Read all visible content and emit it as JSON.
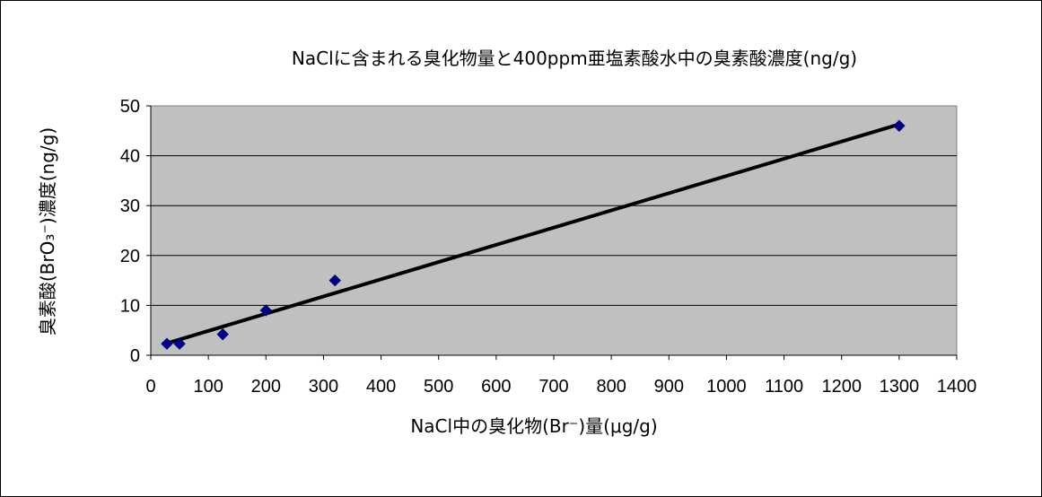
{
  "chart_data": {
    "type": "scatter",
    "title": "NaClに含まれる臭化物量と400ppm亜塩素酸水中の臭素酸濃度(ng/g)",
    "xlabel": "NaCl中の臭化物(Br⁻)量(μg/g)",
    "ylabel": "臭素酸(BrO₃⁻)濃度(ng/g)",
    "xlim": [
      0,
      1400
    ],
    "ylim": [
      0,
      50
    ],
    "x_ticks": [
      0,
      100,
      200,
      300,
      400,
      500,
      600,
      700,
      800,
      900,
      1000,
      1100,
      1200,
      1300,
      1400
    ],
    "y_ticks": [
      0,
      10,
      20,
      30,
      40,
      50
    ],
    "grid": "horizontal",
    "plot_background": "#c0c0c0",
    "series": [
      {
        "marker": "diamond",
        "color": "#000080",
        "points": [
          {
            "x": 28,
            "y": 2.3
          },
          {
            "x": 50,
            "y": 2.3
          },
          {
            "x": 125,
            "y": 4.2
          },
          {
            "x": 200,
            "y": 9.0
          },
          {
            "x": 320,
            "y": 15.0
          },
          {
            "x": 1300,
            "y": 46.0
          }
        ]
      }
    ],
    "trendline": {
      "type": "linear",
      "color": "#000000",
      "from": {
        "x": 28,
        "y": 2.4
      },
      "to": {
        "x": 1300,
        "y": 46.3
      }
    }
  }
}
